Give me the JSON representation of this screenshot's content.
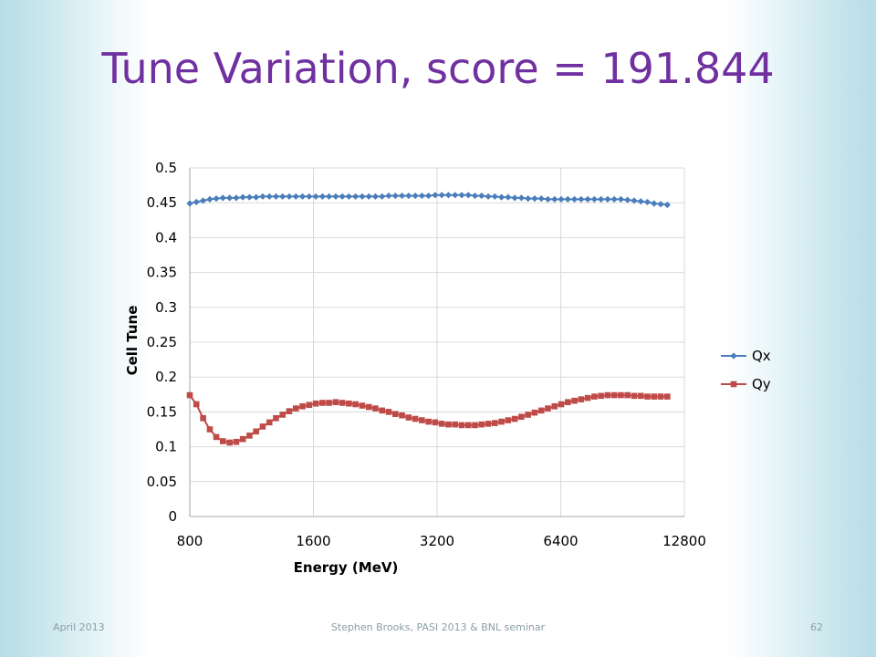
{
  "slide": {
    "title": "Tune Variation, score = 191.844",
    "footer_left": "April 2013",
    "footer_center": "Stephen Brooks, PASI 2013 & BNL seminar",
    "footer_right": "62"
  },
  "colors": {
    "title": "#7030a0",
    "Qx": "#4a7ebb",
    "Qy": "#be4b48",
    "grid": "#d9d9d9"
  },
  "chart_data": {
    "type": "line",
    "title": "",
    "xlabel": "Energy (MeV)",
    "ylabel": "Cell Tune",
    "x_scale": "log2",
    "xlim": [
      800,
      12800
    ],
    "ylim": [
      0,
      0.5
    ],
    "x_ticks": [
      "800",
      "1600",
      "3200",
      "6400",
      "12800"
    ],
    "y_ticks": [
      "0",
      "0.05",
      "0.1",
      "0.15",
      "0.2",
      "0.25",
      "0.3",
      "0.35",
      "0.4",
      "0.45",
      "0.5"
    ],
    "grid": true,
    "legend": "right",
    "x": [
      800,
      830,
      862,
      895,
      928,
      963,
      1000,
      1038,
      1077,
      1118,
      1160,
      1204,
      1250,
      1297,
      1346,
      1397,
      1450,
      1505,
      1562,
      1621,
      1683,
      1746,
      1813,
      1881,
      1952,
      2026,
      2103,
      2183,
      2265,
      2351,
      2440,
      2533,
      2629,
      2728,
      2832,
      2939,
      3050,
      3166,
      3286,
      3410,
      3539,
      3674,
      3813,
      3957,
      4107,
      4263,
      4424,
      4592,
      4766,
      4946,
      5134,
      5328,
      5530,
      5740,
      5957,
      6183,
      6417,
      6660,
      6913,
      7175,
      7446,
      7728,
      8021,
      8325,
      8640,
      8968,
      9307,
      9660,
      10026,
      10405,
      10800,
      11209,
      11634
    ],
    "series": [
      {
        "name": "Qx",
        "marker": "diamond",
        "values": [
          0.449,
          0.451,
          0.453,
          0.455,
          0.456,
          0.457,
          0.457,
          0.457,
          0.458,
          0.458,
          0.458,
          0.459,
          0.459,
          0.459,
          0.459,
          0.459,
          0.459,
          0.459,
          0.459,
          0.459,
          0.459,
          0.459,
          0.459,
          0.459,
          0.459,
          0.459,
          0.459,
          0.459,
          0.459,
          0.459,
          0.46,
          0.46,
          0.46,
          0.46,
          0.46,
          0.46,
          0.46,
          0.461,
          0.461,
          0.461,
          0.461,
          0.461,
          0.461,
          0.46,
          0.46,
          0.459,
          0.459,
          0.458,
          0.458,
          0.457,
          0.457,
          0.456,
          0.456,
          0.456,
          0.455,
          0.455,
          0.455,
          0.455,
          0.455,
          0.455,
          0.455,
          0.455,
          0.455,
          0.455,
          0.455,
          0.455,
          0.454,
          0.453,
          0.452,
          0.451,
          0.449,
          0.448,
          0.447
        ]
      },
      {
        "name": "Qy",
        "marker": "square",
        "values": [
          0.174,
          0.161,
          0.141,
          0.125,
          0.114,
          0.108,
          0.106,
          0.107,
          0.111,
          0.116,
          0.122,
          0.129,
          0.135,
          0.141,
          0.146,
          0.151,
          0.155,
          0.158,
          0.16,
          0.162,
          0.163,
          0.163,
          0.164,
          0.163,
          0.162,
          0.161,
          0.159,
          0.157,
          0.155,
          0.152,
          0.15,
          0.147,
          0.145,
          0.142,
          0.14,
          0.138,
          0.136,
          0.135,
          0.133,
          0.132,
          0.132,
          0.131,
          0.131,
          0.131,
          0.132,
          0.133,
          0.134,
          0.136,
          0.138,
          0.14,
          0.143,
          0.146,
          0.149,
          0.152,
          0.155,
          0.158,
          0.161,
          0.164,
          0.166,
          0.168,
          0.17,
          0.172,
          0.173,
          0.174,
          0.174,
          0.174,
          0.174,
          0.173,
          0.173,
          0.172,
          0.172,
          0.172,
          0.172
        ]
      }
    ]
  }
}
